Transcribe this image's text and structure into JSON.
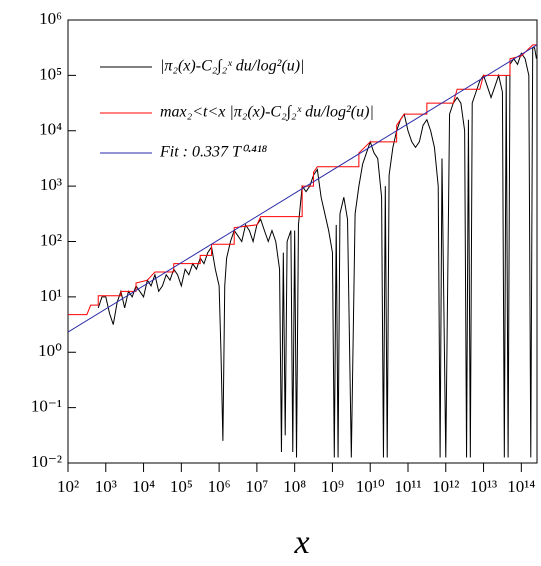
{
  "chart_data": {
    "type": "line",
    "xlabel": "x",
    "log_x": true,
    "log_y": true,
    "grid": false,
    "legend": "upper left",
    "xlim": [
      100.0,
      260000000000000.0
    ],
    "ylim": [
      0.01,
      1000000.0
    ],
    "xticks": [
      {
        "value": 100.0,
        "label": "10²"
      },
      {
        "value": 1000.0,
        "label": "10³"
      },
      {
        "value": 10000.0,
        "label": "10⁴"
      },
      {
        "value": 100000.0,
        "label": "10⁵"
      },
      {
        "value": 1000000.0,
        "label": "10⁶"
      },
      {
        "value": 10000000.0,
        "label": "10⁷"
      },
      {
        "value": 100000000.0,
        "label": "10⁸"
      },
      {
        "value": 1000000000.0,
        "label": "10⁹"
      },
      {
        "value": 10000000000.0,
        "label": "10¹⁰"
      },
      {
        "value": 100000000000.0,
        "label": "10¹¹"
      },
      {
        "value": 1000000000000.0,
        "label": "10¹²"
      },
      {
        "value": 10000000000000.0,
        "label": "10¹³"
      },
      {
        "value": 100000000000000.0,
        "label": "10¹⁴"
      }
    ],
    "yticks": [
      {
        "value": 0.01,
        "label": "10⁻²"
      },
      {
        "value": 0.1,
        "label": "10⁻¹"
      },
      {
        "value": 1,
        "label": "10⁰"
      },
      {
        "value": 10,
        "label": "10¹"
      },
      {
        "value": 100,
        "label": "10²"
      },
      {
        "value": 1000,
        "label": "10³"
      },
      {
        "value": 10000,
        "label": "10⁴"
      },
      {
        "value": 100000,
        "label": "10⁵"
      },
      {
        "value": 1000000,
        "label": "10⁶"
      }
    ],
    "series": [
      {
        "name": "|π₂(x)-C₂∫₂ˣ du/log²(u)|",
        "color": "#000000",
        "x": [
          631.0,
          794.0,
          1000.0,
          1260.0,
          1580.0,
          2000.0,
          2510.0,
          3160.0,
          3980.0,
          5010.0,
          6310.0,
          7940.0,
          10000.0,
          12600.0,
          15800.0,
          20000.0,
          25100.0,
          31600.0,
          39800.0,
          50100.0,
          63100.0,
          79400.0,
          100000.0,
          126000.0,
          158000.0,
          200000.0,
          251000.0,
          316000.0,
          398000.0,
          501000.0,
          631000.0,
          794000.0,
          1000000.0,
          1120000.0,
          1260000.0,
          1410000.0,
          1580000.0,
          2000000.0,
          2510000.0,
          3160000.0,
          3980000.0,
          5010000.0,
          6310000.0,
          7940000.0,
          10000000.0,
          12600000.0,
          15800000.0,
          20000000.0,
          25100000.0,
          31600000.0,
          39800000.0,
          44700000.0,
          50100000.0,
          56200000.0,
          63100000.0,
          79400000.0,
          89100000.0,
          100000000.0,
          112000000.0,
          126000000.0,
          158000000.0,
          200000000.0,
          251000000.0,
          316000000.0,
          398000000.0,
          501000000.0,
          631000000.0,
          794000000.0,
          1000000000.0,
          1120000000.0,
          1260000000.0,
          1410000000.0,
          1580000000.0,
          2000000000.0,
          2510000000.0,
          3160000000.0,
          3980000000.0,
          5010000000.0,
          6310000000.0,
          7940000000.0,
          10000000000.0,
          12600000000.0,
          15800000000.0,
          20000000000.0,
          22400000000.0,
          25100000000.0,
          28200000000.0,
          31600000000.0,
          39800000000.0,
          50100000000.0,
          63100000000.0,
          79400000000.0,
          100000000000.0,
          126000000000.0,
          158000000000.0,
          200000000000.0,
          251000000000.0,
          316000000000.0,
          398000000000.0,
          501000000000.0,
          631000000000.0,
          708000000000.0,
          794000000000.0,
          1000000000000.0,
          1260000000000.0,
          1580000000000.0,
          2000000000000.0,
          2510000000000.0,
          3160000000000.0,
          3550000000000.0,
          3980000000000.0,
          4470000000000.0,
          5010000000000.0,
          6310000000000.0,
          7940000000000.0,
          10000000000000.0,
          12600000000000.0,
          15800000000000.0,
          20000000000000.0,
          25100000000000.0,
          31600000000000.0,
          35500000000000.0,
          39800000000000.0,
          44700000000000.0,
          50100000000000.0,
          63100000000000.0,
          79400000000000.0,
          100000000000000.0,
          126000000000000.0,
          158000000000000.0,
          178000000000000.0,
          200000000000000.0,
          224000000000000.0,
          251000000000000.0
        ],
        "values": [
          6.31,
          10,
          10,
          5.01,
          3.16,
          7.94,
          12.6,
          6.31,
          12.6,
          10,
          15.8,
          12.6,
          10,
          20,
          15.8,
          25.1,
          12.6,
          15.8,
          25.1,
          20,
          31.6,
          25.1,
          15.8,
          31.6,
          25.1,
          39.8,
          31.6,
          50.1,
          39.8,
          63.1,
          79.4,
          31.6,
          15.8,
          1,
          0.0251,
          15.8,
          50.1,
          100,
          158,
          126,
          100,
          200,
          158,
          100,
          200,
          251,
          158,
          100,
          158,
          100,
          31.6,
          0.0158,
          63.1,
          0.0316,
          100,
          158,
          0.0158,
          158,
          0.0126,
          200,
          1000,
          794,
          1000,
          1580,
          2000,
          631,
          316,
          158,
          63.1,
          0.0126,
          200,
          0.0126,
          316,
          631,
          251,
          0.0126,
          316,
          1000,
          2510,
          3980,
          6310,
          3980,
          3160,
          631,
          0.0126,
          1000,
          0.0126,
          1580,
          5010,
          10000,
          15800,
          20000,
          10000,
          6310,
          5010,
          6310,
          12600,
          15800,
          10000,
          5010,
          1000,
          0.0126,
          3160,
          0.0126,
          20000,
          31600,
          39800,
          31600,
          10000,
          0.0126,
          15800,
          0.0126,
          31600,
          50100,
          79400,
          100000,
          63100,
          39800,
          63100,
          100000,
          50100,
          0.0126,
          100000,
          0.0126,
          158000,
          200000,
          158000,
          251000,
          200000,
          100000,
          0.0126,
          316000,
          316000,
          200000
        ]
      },
      {
        "name": "max₂<t<x |π₂(x)-C₂∫₂ˣ du/log²(u)|",
        "color": "#ff0000",
        "x": [
          100.0,
          316.0,
          398.0,
          631.0,
          631.0,
          2510.0,
          2510.0,
          6310.0,
          6310.0,
          12600.0,
          20000.0,
          63100.0,
          63100.0,
          316000.0,
          316000.0,
          631000.0,
          631000.0,
          2510000.0,
          2510000.0,
          10000000.0,
          12600000.0,
          158000000.0,
          158000000.0,
          316000000.0,
          316000000.0,
          398000000.0,
          5010000000.0,
          5010000000.0,
          10000000000.0,
          50100000000.0,
          50100000000.0,
          79400000000.0,
          316000000000.0,
          316000000000.0,
          1580000000000.0,
          2000000000000.0,
          7940000000000.0,
          10000000000000.0,
          50100000000000.0,
          50100000000000.0,
          100000000000000.0,
          200000000000000.0,
          260000000000000.0
        ],
        "values": [
          4.79,
          4.79,
          7.08,
          7.08,
          10.5,
          10.5,
          12.6,
          12.6,
          17.8,
          20,
          28.2,
          28.2,
          39.8,
          39.8,
          56.2,
          56.2,
          89.1,
          89.1,
          178,
          200,
          282,
          282,
          1000,
          1000,
          1780,
          2240,
          2240,
          3980,
          6310,
          6310,
          12600,
          20000,
          20000,
          31600,
          31600,
          56200,
          56200,
          100000,
          100000,
          200000,
          224000,
          355000,
          355000
        ]
      },
      {
        "name": "Fit :  0.337 T⁰·⁴¹⁸",
        "color": "#2a2aa8",
        "x": [
          100.0,
          260000000000000.0
        ],
        "values": [
          2.31,
          357000
        ]
      }
    ]
  }
}
